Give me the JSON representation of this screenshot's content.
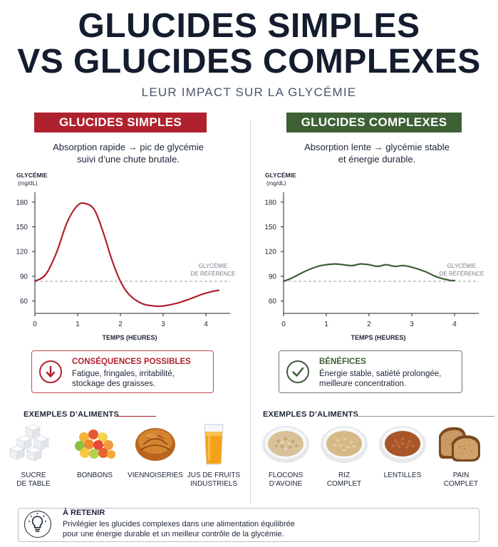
{
  "header": {
    "title_line1": "GLUCIDES SIMPLES",
    "title_line2": "VS GLUCIDES COMPLEXES",
    "subtitle": "LEUR IMPACT SUR LA GLYCÉMIE"
  },
  "left": {
    "banner": "GLUCIDES SIMPLES",
    "desc_line1": "Absorption rapide → pic de glycémie",
    "desc_line2": "suivi d’une chute brutale.",
    "box_icon": "arrow-down-icon",
    "box_title": "CONSÉQUENCES POSSIBLES",
    "box_line1": "Fatigue, fringales, irritabilité,",
    "box_line2": "stockage des graisses.",
    "examples_title": "EXEMPLES D’ALIMENTS",
    "foods": [
      {
        "icon": "sugar-cubes-icon",
        "line1": "SUCRE",
        "line2": "DE TABLE"
      },
      {
        "icon": "candies-icon",
        "line1": "BONBONS",
        "line2": ""
      },
      {
        "icon": "croissant-icon",
        "line1": "VIENNOISERIES",
        "line2": ""
      },
      {
        "icon": "juice-glass-icon",
        "line1": "JUS DE FRUITS",
        "line2": "INDUSTRIELS"
      }
    ]
  },
  "right": {
    "banner": "GLUCIDES COMPLEXES",
    "desc_line1": "Absorption lente → glycémie stable",
    "desc_line2": "et énergie durable.",
    "box_icon": "checkmark-icon",
    "box_title": "BÉNÉFICES",
    "box_line1": "Énergie stable, satiété prolongée,",
    "box_line2": "meilleure concentration.",
    "examples_title": "EXEMPLES D’ALIMENTS",
    "foods": [
      {
        "icon": "oat-bowl-icon",
        "line1": "FLOCONS",
        "line2": "D’AVOINE"
      },
      {
        "icon": "rice-bowl-icon",
        "line1": "RIZ",
        "line2": "COMPLET"
      },
      {
        "icon": "lentils-bowl-icon",
        "line1": "LENTILLES",
        "line2": ""
      },
      {
        "icon": "bread-icon",
        "line1": "PAIN",
        "line2": "COMPLET"
      }
    ]
  },
  "footer": {
    "icon": "lightbulb-icon",
    "title": "À RETENIR",
    "line1": "Privilégier les glucides complexes dans une alimentation équilibrée",
    "line2": "pour une énergie durable et un meilleur contrôle de la glycémie."
  },
  "colors": {
    "simple": "#b0212e",
    "complex": "#3d6035",
    "reference": "#9aa0a8"
  },
  "chart_data": [
    {
      "type": "line",
      "title": "",
      "ylabel_line1": "GLYCÉMIE",
      "ylabel_line2": "(mg/dL)",
      "xlabel": "TEMPS (HEURES)",
      "xlim": [
        0,
        4.3
      ],
      "ylim": [
        45,
        185
      ],
      "xticks": [
        0,
        1,
        2,
        3,
        4
      ],
      "yticks": [
        60,
        90,
        120,
        150,
        180
      ],
      "grid": false,
      "reference": {
        "label_line1": "GLYCÉMIE",
        "label_line2": "DE RÉFÉRENCE",
        "y": 84
      },
      "series": [
        {
          "color": "#b0212e",
          "x": [
            0,
            0.25,
            0.5,
            0.75,
            1.0,
            1.2,
            1.4,
            1.6,
            1.8,
            2.0,
            2.2,
            2.5,
            2.8,
            3.0,
            3.3,
            3.6,
            3.9,
            4.1,
            4.3
          ],
          "y": [
            84,
            92,
            118,
            155,
            176,
            178,
            170,
            143,
            110,
            84,
            68,
            57,
            54,
            54,
            57,
            62,
            68,
            71,
            73
          ]
        }
      ]
    },
    {
      "type": "line",
      "title": "",
      "ylabel_line1": "GLYCÉMIE",
      "ylabel_line2": "(mg/dL)",
      "xlabel": "TEMPS (HEURES)",
      "xlim": [
        0,
        4.3
      ],
      "ylim": [
        45,
        185
      ],
      "xticks": [
        0,
        1,
        2,
        3,
        4
      ],
      "yticks": [
        60,
        90,
        120,
        150,
        180
      ],
      "grid": false,
      "reference": {
        "label_line1": "GLYCÉMIE",
        "label_line2": "DE RÉFÉRENCE",
        "y": 84
      },
      "series": [
        {
          "color": "#3d6035",
          "x": [
            0,
            0.2,
            0.5,
            0.8,
            1.0,
            1.2,
            1.4,
            1.6,
            1.8,
            2.0,
            2.2,
            2.4,
            2.6,
            2.8,
            3.0,
            3.3,
            3.6,
            3.9,
            4.0
          ],
          "y": [
            84,
            88,
            96,
            102,
            104,
            105,
            104,
            103,
            105,
            104,
            102,
            104,
            102,
            103,
            101,
            96,
            89,
            85,
            85
          ]
        }
      ]
    }
  ]
}
